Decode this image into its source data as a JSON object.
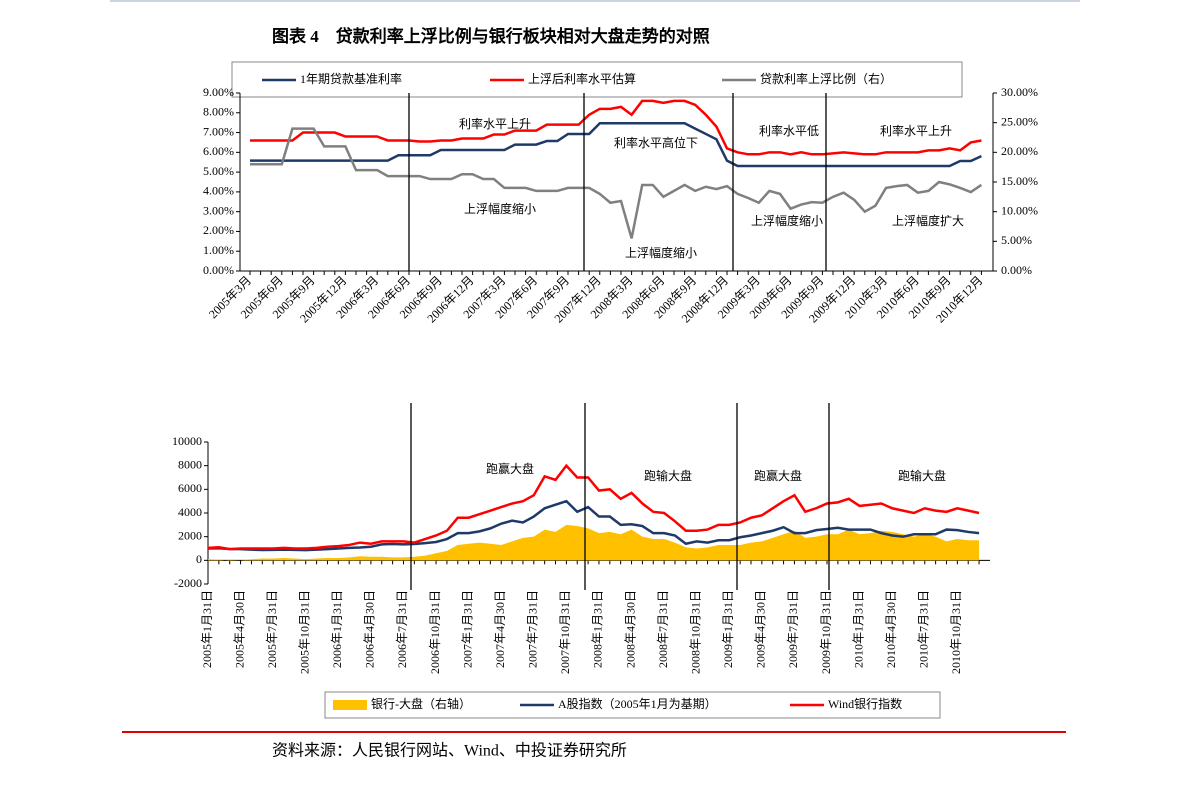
{
  "title": "图表 4　贷款利率上浮比例与银行板块相对大盘走势的对照",
  "source": "资料来源：人民银行网站、Wind、中投证券研究所",
  "chart_data": [
    {
      "type": "line",
      "categories": [
        "2005年3月",
        null,
        null,
        "2005年6月",
        null,
        null,
        "2005年9月",
        null,
        null,
        "2005年12月",
        null,
        null,
        "2006年3月",
        null,
        null,
        "2006年6月",
        null,
        null,
        "2006年9月",
        null,
        null,
        "2006年12月",
        null,
        null,
        "2007年3月",
        null,
        null,
        "2007年6月",
        null,
        null,
        "2007年9月",
        null,
        null,
        "2007年12月",
        null,
        null,
        "2008年3月",
        null,
        null,
        "2008年6月",
        null,
        null,
        "2008年9月",
        null,
        null,
        "2008年12月",
        null,
        null,
        "2009年3月",
        null,
        null,
        "2009年6月",
        null,
        null,
        "2009年9月",
        null,
        null,
        "2009年12月",
        null,
        null,
        "2010年3月",
        null,
        null,
        "2010年6月",
        null,
        null,
        "2010年9月",
        null,
        null,
        "2010年12月"
      ],
      "series": [
        {
          "name": "1年期贷款基准利率",
          "color": "#1f3a68",
          "values": [
            5.58,
            5.58,
            5.58,
            5.58,
            5.58,
            5.58,
            5.58,
            5.58,
            5.58,
            5.58,
            5.58,
            5.58,
            5.58,
            5.58,
            5.85,
            5.85,
            5.85,
            5.85,
            6.12,
            6.12,
            6.12,
            6.12,
            6.12,
            6.12,
            6.12,
            6.39,
            6.39,
            6.39,
            6.57,
            6.57,
            6.93,
            6.93,
            6.93,
            7.47,
            7.47,
            7.47,
            7.47,
            7.47,
            7.47,
            7.47,
            7.47,
            7.47,
            7.2,
            6.93,
            6.66,
            5.58,
            5.31,
            5.31,
            5.31,
            5.31,
            5.31,
            5.31,
            5.31,
            5.31,
            5.31,
            5.31,
            5.31,
            5.31,
            5.31,
            5.31,
            5.31,
            5.31,
            5.31,
            5.31,
            5.31,
            5.31,
            5.31,
            5.56,
            5.56,
            5.81
          ]
        },
        {
          "name": "上浮后利率水平估算",
          "color": "#ff0000",
          "values": [
            6.6,
            6.6,
            6.6,
            6.6,
            6.6,
            7.0,
            7.0,
            7.0,
            7.0,
            6.8,
            6.8,
            6.8,
            6.8,
            6.6,
            6.6,
            6.6,
            6.55,
            6.55,
            6.6,
            6.6,
            6.7,
            6.7,
            6.7,
            6.9,
            6.9,
            7.1,
            7.1,
            7.1,
            7.4,
            7.4,
            7.4,
            7.4,
            7.9,
            8.2,
            8.2,
            8.3,
            7.9,
            8.6,
            8.6,
            8.5,
            8.6,
            8.6,
            8.4,
            7.9,
            7.3,
            6.2,
            6.0,
            5.9,
            5.9,
            6.0,
            6.0,
            5.9,
            6.0,
            5.9,
            5.9,
            5.95,
            6.0,
            5.95,
            5.9,
            5.9,
            6.0,
            6.0,
            6.0,
            6.0,
            6.1,
            6.1,
            6.2,
            6.1,
            6.5,
            6.6
          ]
        },
        {
          "name": "贷款利率上浮比例（右）",
          "color": "#808080",
          "axis": "y2",
          "values": [
            18,
            18,
            18,
            18,
            24,
            24,
            24,
            21,
            21,
            21,
            17,
            17,
            17,
            16,
            16,
            16,
            16,
            15.5,
            15.5,
            15.5,
            16.3,
            16.3,
            15.5,
            15.5,
            14,
            14,
            14,
            13.5,
            13.5,
            13.5,
            14,
            14,
            14,
            13,
            11.5,
            11.8,
            5.5,
            14.5,
            14.5,
            12.5,
            13.5,
            14.5,
            13.5,
            14.2,
            13.8,
            14.3,
            13,
            12.3,
            11.5,
            13.5,
            13,
            10.5,
            11.2,
            11.6,
            11.5,
            12.5,
            13.2,
            12,
            10,
            11,
            14,
            14.3,
            14.5,
            13.2,
            13.5,
            15,
            14.6,
            14,
            13.3,
            14.5
          ]
        }
      ],
      "ylim": [
        0,
        9
      ],
      "yticks": [
        {
          "value": 0,
          "label": "0.00%"
        },
        {
          "value": 1,
          "label": "1.00%"
        },
        {
          "value": 2,
          "label": "2.00%"
        },
        {
          "value": 3,
          "label": "3.00%"
        },
        {
          "value": 4,
          "label": "4.00%"
        },
        {
          "value": 5,
          "label": "5.00%"
        },
        {
          "value": 6,
          "label": "6.00%"
        },
        {
          "value": 7,
          "label": "7.00%"
        },
        {
          "value": 8,
          "label": "8.00%"
        },
        {
          "value": 9,
          "label": "9.00%"
        }
      ],
      "y2lim": [
        0,
        30
      ],
      "y2ticks": [
        {
          "value": 0,
          "label": "0.00%"
        },
        {
          "value": 5,
          "label": "5.00%"
        },
        {
          "value": 10,
          "label": "10.00%"
        },
        {
          "value": 15,
          "label": "15.00%"
        },
        {
          "value": 20,
          "label": "20.00%"
        },
        {
          "value": 25,
          "label": "25.00%"
        },
        {
          "value": 30,
          "label": "30.00%"
        }
      ],
      "annotations": [
        {
          "text": "利率水平上升",
          "color": "#ff0000"
        },
        {
          "text": "利率水平高位下",
          "color": "#ff0000"
        },
        {
          "text": "利率水平低",
          "color": "#ff0000"
        },
        {
          "text": "利率水平上升",
          "color": "#ff0000"
        },
        {
          "text": "上浮幅度缩小",
          "color": "#000000"
        },
        {
          "text": "上浮幅度缩小",
          "color": "#000000"
        },
        {
          "text": "上浮幅度缩小",
          "color": "#000000"
        },
        {
          "text": "上浮幅度扩大",
          "color": "#000000"
        }
      ]
    },
    {
      "type": "line",
      "categories": [
        "2005年1月31日",
        null,
        null,
        "2005年4月30日",
        null,
        null,
        "2005年7月31日",
        null,
        null,
        "2005年10月31日",
        null,
        null,
        "2006年1月31日",
        null,
        null,
        "2006年4月30日",
        null,
        null,
        "2006年7月31日",
        null,
        null,
        "2006年10月31日",
        null,
        null,
        "2007年1月31日",
        null,
        null,
        "2007年4月30日",
        null,
        null,
        "2007年7月31日",
        null,
        null,
        "2007年10月31日",
        null,
        null,
        "2008年1月31日",
        null,
        null,
        "2008年4月30日",
        null,
        null,
        "2008年7月31日",
        null,
        null,
        "2008年10月31日",
        null,
        null,
        "2009年1月31日",
        null,
        null,
        "2009年4月30日",
        null,
        null,
        "2009年7月31日",
        null,
        null,
        "2009年10月31日",
        null,
        null,
        "2010年1月31日",
        null,
        null,
        "2010年4月30日",
        null,
        null,
        "2010年7月31日",
        null,
        null,
        "2010年10月31日",
        null,
        null
      ],
      "series": [
        {
          "name": "银行-大盘（右轴）",
          "color": "#ffc000",
          "kind": "area",
          "values": [
            100,
            50,
            -50,
            0,
            100,
            150,
            150,
            200,
            150,
            100,
            150,
            200,
            200,
            250,
            350,
            300,
            300,
            250,
            250,
            300,
            400,
            600,
            800,
            1300,
            1400,
            1500,
            1400,
            1300,
            1600,
            1900,
            2000,
            2600,
            2400,
            3000,
            2900,
            2700,
            2300,
            2400,
            2200,
            2600,
            2000,
            1800,
            1800,
            1500,
            1100,
            1000,
            1100,
            1300,
            1300,
            1300,
            1500,
            1600,
            1900,
            2200,
            2500,
            1900,
            2000,
            2200,
            2200,
            2600,
            2200,
            2300,
            2500,
            2400,
            2200,
            2000,
            2200,
            2000,
            1600,
            1800,
            1700,
            1700
          ]
        },
        {
          "name": "A股指数（2005年1月为基期）",
          "color": "#1f3a68",
          "values": [
            1000,
            1020,
            960,
            950,
            900,
            870,
            880,
            900,
            880,
            860,
            900,
            950,
            1000,
            1050,
            1080,
            1150,
            1350,
            1380,
            1350,
            1380,
            1450,
            1550,
            1800,
            2300,
            2300,
            2450,
            2700,
            3100,
            3350,
            3200,
            3700,
            4400,
            4700,
            5000,
            4100,
            4500,
            3700,
            3700,
            3000,
            3050,
            2900,
            2300,
            2300,
            2100,
            1400,
            1600,
            1500,
            1700,
            1700,
            1950,
            2100,
            2300,
            2500,
            2800,
            2300,
            2300,
            2550,
            2650,
            2750,
            2600,
            2600,
            2600,
            2300,
            2100,
            2000,
            2200,
            2200,
            2200,
            2600,
            2550,
            2400,
            2300
          ]
        },
        {
          "name": "Wind银行指数",
          "color": "#ff0000",
          "values": [
            1050,
            1100,
            950,
            1000,
            1000,
            1000,
            1000,
            1050,
            1000,
            1000,
            1050,
            1150,
            1200,
            1300,
            1500,
            1400,
            1600,
            1600,
            1600,
            1500,
            1800,
            2100,
            2500,
            3600,
            3600,
            3900,
            4200,
            4500,
            4800,
            5000,
            5500,
            7100,
            6800,
            8000,
            7000,
            7000,
            5900,
            6000,
            5200,
            5700,
            4800,
            4100,
            4000,
            3300,
            2500,
            2500,
            2600,
            3000,
            3000,
            3200,
            3600,
            3800,
            4400,
            5000,
            5500,
            4100,
            4400,
            4800,
            4900,
            5200,
            4600,
            4700,
            4800,
            4400,
            4200,
            4000,
            4400,
            4200,
            4100,
            4400,
            4200,
            4000
          ]
        }
      ],
      "ylim": [
        -2000,
        10000
      ],
      "yticks": [
        -2000,
        0,
        2000,
        4000,
        6000,
        8000,
        10000
      ],
      "annotations": [
        {
          "text": "跑赢大盘",
          "color": "#ff0000"
        },
        {
          "text": "跑输大盘",
          "color": "#008000"
        },
        {
          "text": "跑赢大盘",
          "color": "#ff0000"
        },
        {
          "text": "跑输大盘",
          "color": "#008000"
        }
      ]
    }
  ]
}
